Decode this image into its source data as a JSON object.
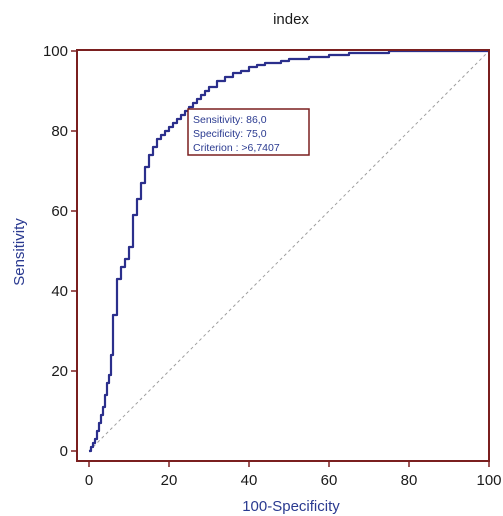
{
  "chart_data": {
    "type": "line",
    "title": "index",
    "xlabel": "100-Specificity",
    "ylabel": "Sensitivity",
    "xlim": [
      0,
      100
    ],
    "ylim": [
      0,
      100
    ],
    "x_ticks": [
      "0",
      "20",
      "40",
      "60",
      "80",
      "100"
    ],
    "y_ticks": [
      "0",
      "20",
      "40",
      "60",
      "80",
      "100"
    ],
    "grid": false,
    "series": [
      {
        "color": "#2b2f8c",
        "style": "step",
        "x": [
          0,
          0.5,
          1,
          1.5,
          2,
          2.5,
          3,
          3.5,
          4,
          4.5,
          5,
          5.5,
          6,
          7,
          8,
          9,
          10,
          11,
          12,
          13,
          14,
          15,
          16,
          17,
          18,
          19,
          20,
          21,
          22,
          23,
          24,
          25,
          26,
          27,
          28,
          29,
          30,
          32,
          34,
          36,
          38,
          40,
          42,
          44,
          46,
          48,
          50,
          55,
          60,
          65,
          70,
          75,
          80,
          90,
          100
        ],
        "y": [
          0,
          1,
          2,
          3,
          5,
          7,
          9,
          11,
          14,
          17,
          19,
          24,
          34,
          43,
          46,
          48,
          51,
          59,
          63,
          67,
          71,
          74,
          76,
          78,
          79,
          80,
          81,
          82,
          83,
          84,
          85,
          86,
          87,
          88,
          89,
          90,
          91,
          92.5,
          93.5,
          94.5,
          95,
          96,
          96.5,
          97,
          97,
          97.5,
          98,
          98.5,
          99,
          99.5,
          99.5,
          100,
          100,
          100,
          100
        ]
      },
      {
        "color": "#a0a0a0",
        "style": "dashed",
        "x": [
          0,
          100
        ],
        "y": [
          0,
          100
        ]
      }
    ],
    "annotation": {
      "lines": [
        "Sensitivity: 86,0",
        "Specificity: 75,0",
        "Criterion : >6,7407"
      ],
      "point": [
        25,
        86
      ],
      "border_color": "#7a1f1f"
    },
    "frame_color": "#7a1f1f"
  }
}
